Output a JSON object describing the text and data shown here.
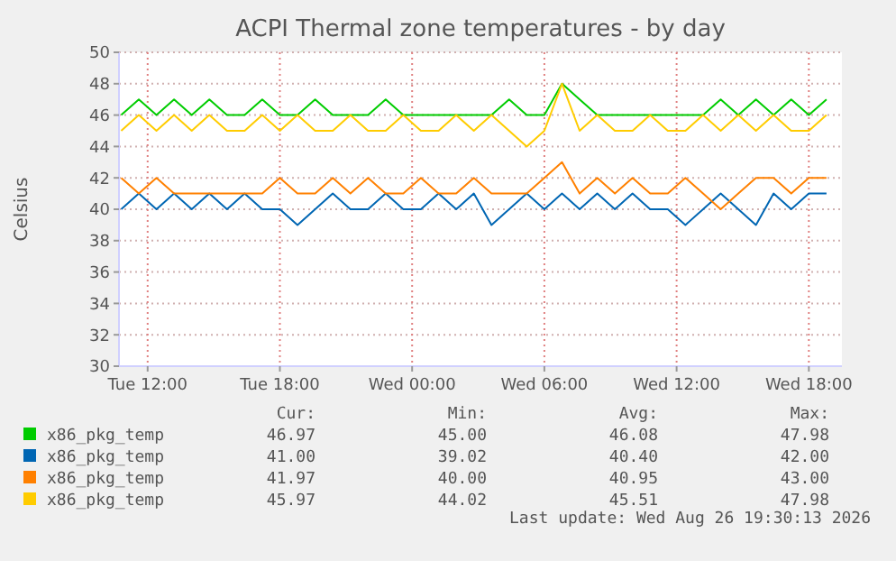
{
  "chart_data": {
    "type": "line",
    "title": "ACPI Thermal zone temperatures - by day",
    "ylabel": "Celsius",
    "x": [
      "2026-08-25T10:48",
      "2026-08-25T11:36",
      "2026-08-25T12:24",
      "2026-08-25T13:12",
      "2026-08-25T14:00",
      "2026-08-25T14:48",
      "2026-08-25T15:36",
      "2026-08-25T16:24",
      "2026-08-25T17:12",
      "2026-08-25T18:00",
      "2026-08-25T18:48",
      "2026-08-25T19:36",
      "2026-08-25T20:24",
      "2026-08-25T21:12",
      "2026-08-25T22:00",
      "2026-08-25T22:48",
      "2026-08-25T23:36",
      "2026-08-26T00:24",
      "2026-08-26T01:12",
      "2026-08-26T02:00",
      "2026-08-26T02:48",
      "2026-08-26T03:36",
      "2026-08-26T04:24",
      "2026-08-26T05:12",
      "2026-08-26T06:00",
      "2026-08-26T06:48",
      "2026-08-26T07:36",
      "2026-08-26T08:24",
      "2026-08-26T09:12",
      "2026-08-26T10:00",
      "2026-08-26T10:48",
      "2026-08-26T11:36",
      "2026-08-26T12:24",
      "2026-08-26T13:12",
      "2026-08-26T14:00",
      "2026-08-26T14:48",
      "2026-08-26T15:36",
      "2026-08-26T16:24",
      "2026-08-26T17:12",
      "2026-08-26T18:00",
      "2026-08-26T18:48"
    ],
    "series": [
      {
        "name": "x86_pkg_temp",
        "color": "#00cc00",
        "values": [
          46,
          47,
          46,
          47,
          46,
          47,
          46,
          46,
          47,
          46,
          46,
          47,
          46,
          46,
          46,
          47,
          46,
          46,
          46,
          46,
          46,
          46,
          47,
          46,
          46,
          48,
          47,
          46,
          46,
          46,
          46,
          46,
          46,
          46,
          47,
          46,
          47,
          46,
          47,
          46,
          47
        ]
      },
      {
        "name": "x86_pkg_temp",
        "color": "#0066b3",
        "values": [
          40,
          41,
          40,
          41,
          40,
          41,
          40,
          41,
          40,
          40,
          39,
          40,
          41,
          40,
          40,
          41,
          40,
          40,
          41,
          40,
          41,
          39,
          40,
          41,
          40,
          41,
          40,
          41,
          40,
          41,
          40,
          40,
          39,
          40,
          41,
          40,
          39,
          41,
          40,
          41,
          41
        ]
      },
      {
        "name": "x86_pkg_temp",
        "color": "#ff8000",
        "values": [
          42,
          41,
          42,
          41,
          41,
          41,
          41,
          41,
          41,
          42,
          41,
          41,
          42,
          41,
          42,
          41,
          41,
          42,
          41,
          41,
          42,
          41,
          41,
          41,
          42,
          43,
          41,
          42,
          41,
          42,
          41,
          41,
          42,
          41,
          40,
          41,
          42,
          42,
          41,
          42,
          42
        ]
      },
      {
        "name": "x86_pkg_temp",
        "color": "#ffcc00",
        "values": [
          45,
          46,
          45,
          46,
          45,
          46,
          45,
          45,
          46,
          45,
          46,
          45,
          45,
          46,
          45,
          45,
          46,
          45,
          45,
          46,
          45,
          46,
          45,
          44,
          45,
          48,
          45,
          46,
          45,
          45,
          46,
          45,
          45,
          46,
          45,
          46,
          45,
          46,
          45,
          45,
          46
        ]
      }
    ],
    "xlim": [
      "2026-08-25T10:42",
      "2026-08-26T19:30"
    ],
    "xticks": [
      {
        "value": "2026-08-25T12:00",
        "label": "Tue 12:00"
      },
      {
        "value": "2026-08-25T18:00",
        "label": "Tue 18:00"
      },
      {
        "value": "2026-08-26T00:00",
        "label": "Wed 00:00"
      },
      {
        "value": "2026-08-26T06:00",
        "label": "Wed 06:00"
      },
      {
        "value": "2026-08-26T12:00",
        "label": "Wed 12:00"
      },
      {
        "value": "2026-08-26T18:00",
        "label": "Wed 18:00"
      }
    ],
    "ylim": [
      30,
      50
    ],
    "yticks": [
      30,
      32,
      34,
      36,
      38,
      40,
      42,
      44,
      46,
      48,
      50
    ],
    "grid": true,
    "legend": "bottom",
    "annotations": [
      "Cur:",
      "Min:",
      "Avg:",
      "Max:",
      "46.97",
      "45.00",
      "46.08",
      "47.98",
      "41.00",
      "39.02",
      "40.40",
      "42.00",
      "41.97",
      "40.00",
      "40.95",
      "43.00",
      "45.97",
      "44.02",
      "45.51",
      "47.98",
      "Last update: Wed Aug 26 19:30:13 2026"
    ]
  }
}
